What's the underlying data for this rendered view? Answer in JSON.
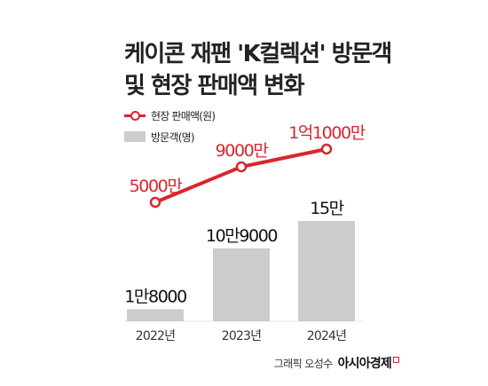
{
  "title_lines": [
    "케이콘 재팬 'K컬렉션' 방문객",
    "및 현장 판매액 변화"
  ],
  "legend": {
    "line_label": "현장 판매액(원)",
    "bar_label": "방문객(명)"
  },
  "credit": {
    "text": "그래픽 오성수",
    "logo": "아시아경제"
  },
  "colors": {
    "line": "#d9262e",
    "bar": "#cccccc",
    "text": "#222222"
  },
  "chart_data": {
    "type": "bar",
    "title": "케이콘 재팬 'K컬렉션' 방문객 및 현장 판매액 변화",
    "categories": [
      "2022년",
      "2023년",
      "2024년"
    ],
    "series": [
      {
        "name": "방문객(명)",
        "type": "bar",
        "values": [
          18000,
          109000,
          150000
        ],
        "labels": [
          "1만8000",
          "10만9000",
          "15만"
        ]
      },
      {
        "name": "현장 판매액(원)",
        "type": "line",
        "values": [
          50000000,
          90000000,
          110000000
        ],
        "labels": [
          "5000만",
          "9000만",
          "1억1000만"
        ]
      }
    ],
    "xlabel": "",
    "ylabel": "",
    "grid": false,
    "legend_position": "top-left"
  }
}
